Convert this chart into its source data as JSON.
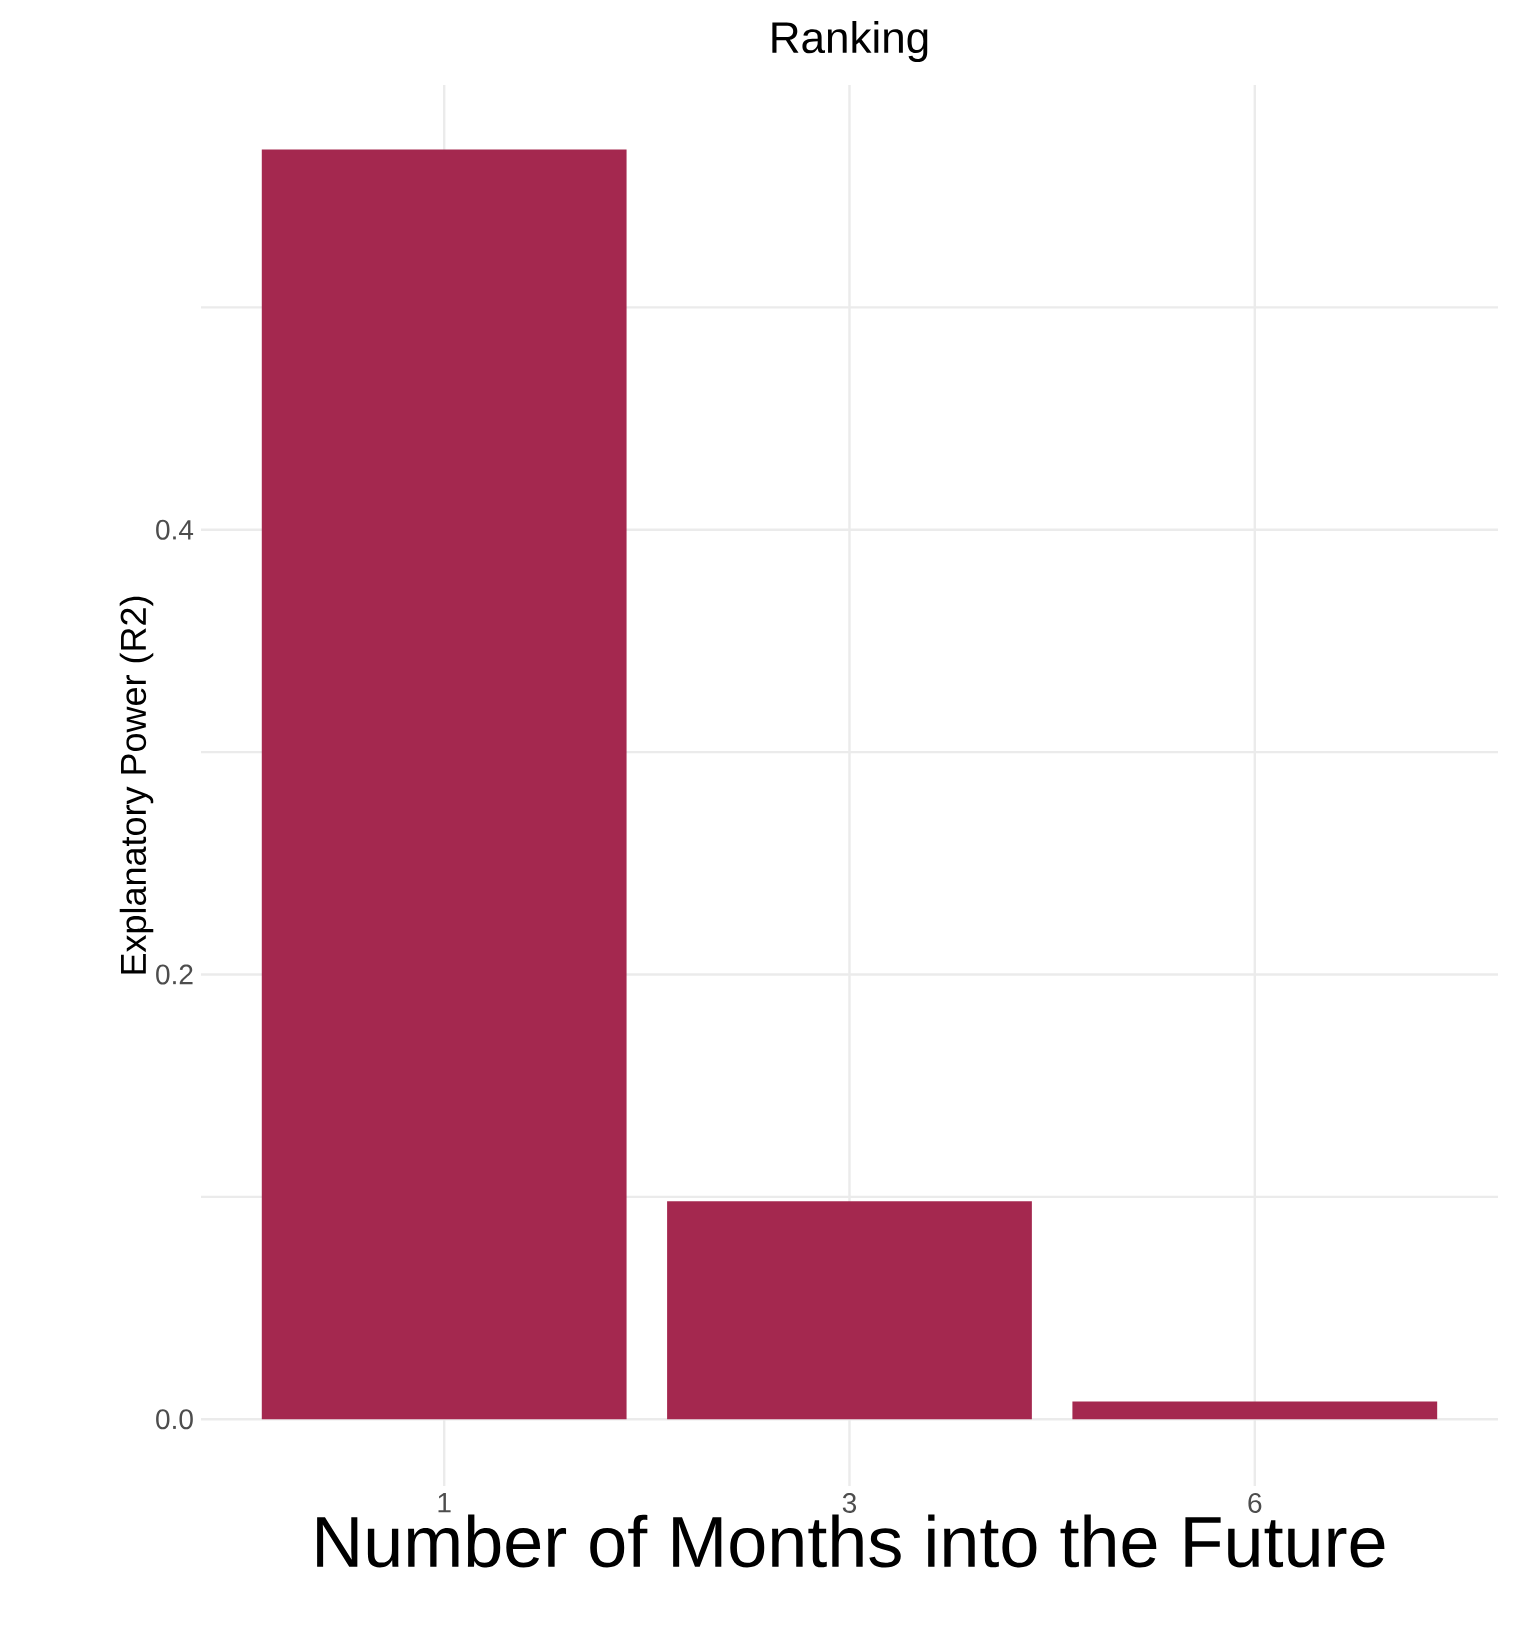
{
  "chart_data": {
    "type": "bar",
    "title": "Ranking",
    "xlabel": "Number of Months into the Future",
    "ylabel": "Explanatory Power (R2)",
    "categories": [
      "1",
      "3",
      "6"
    ],
    "values": [
      0.571,
      0.098,
      0.008
    ],
    "color": "#a4284f",
    "ylim": [
      -0.03,
      0.6
    ],
    "yticks": [
      {
        "value": 0,
        "label": "0.0"
      },
      {
        "value": 0.1,
        "label": null
      },
      {
        "value": 0.2,
        "label": "0.2"
      },
      {
        "value": 0.3,
        "label": null
      },
      {
        "value": 0.4,
        "label": "0.4"
      },
      {
        "value": 0.5,
        "label": null
      }
    ],
    "grid": true
  }
}
